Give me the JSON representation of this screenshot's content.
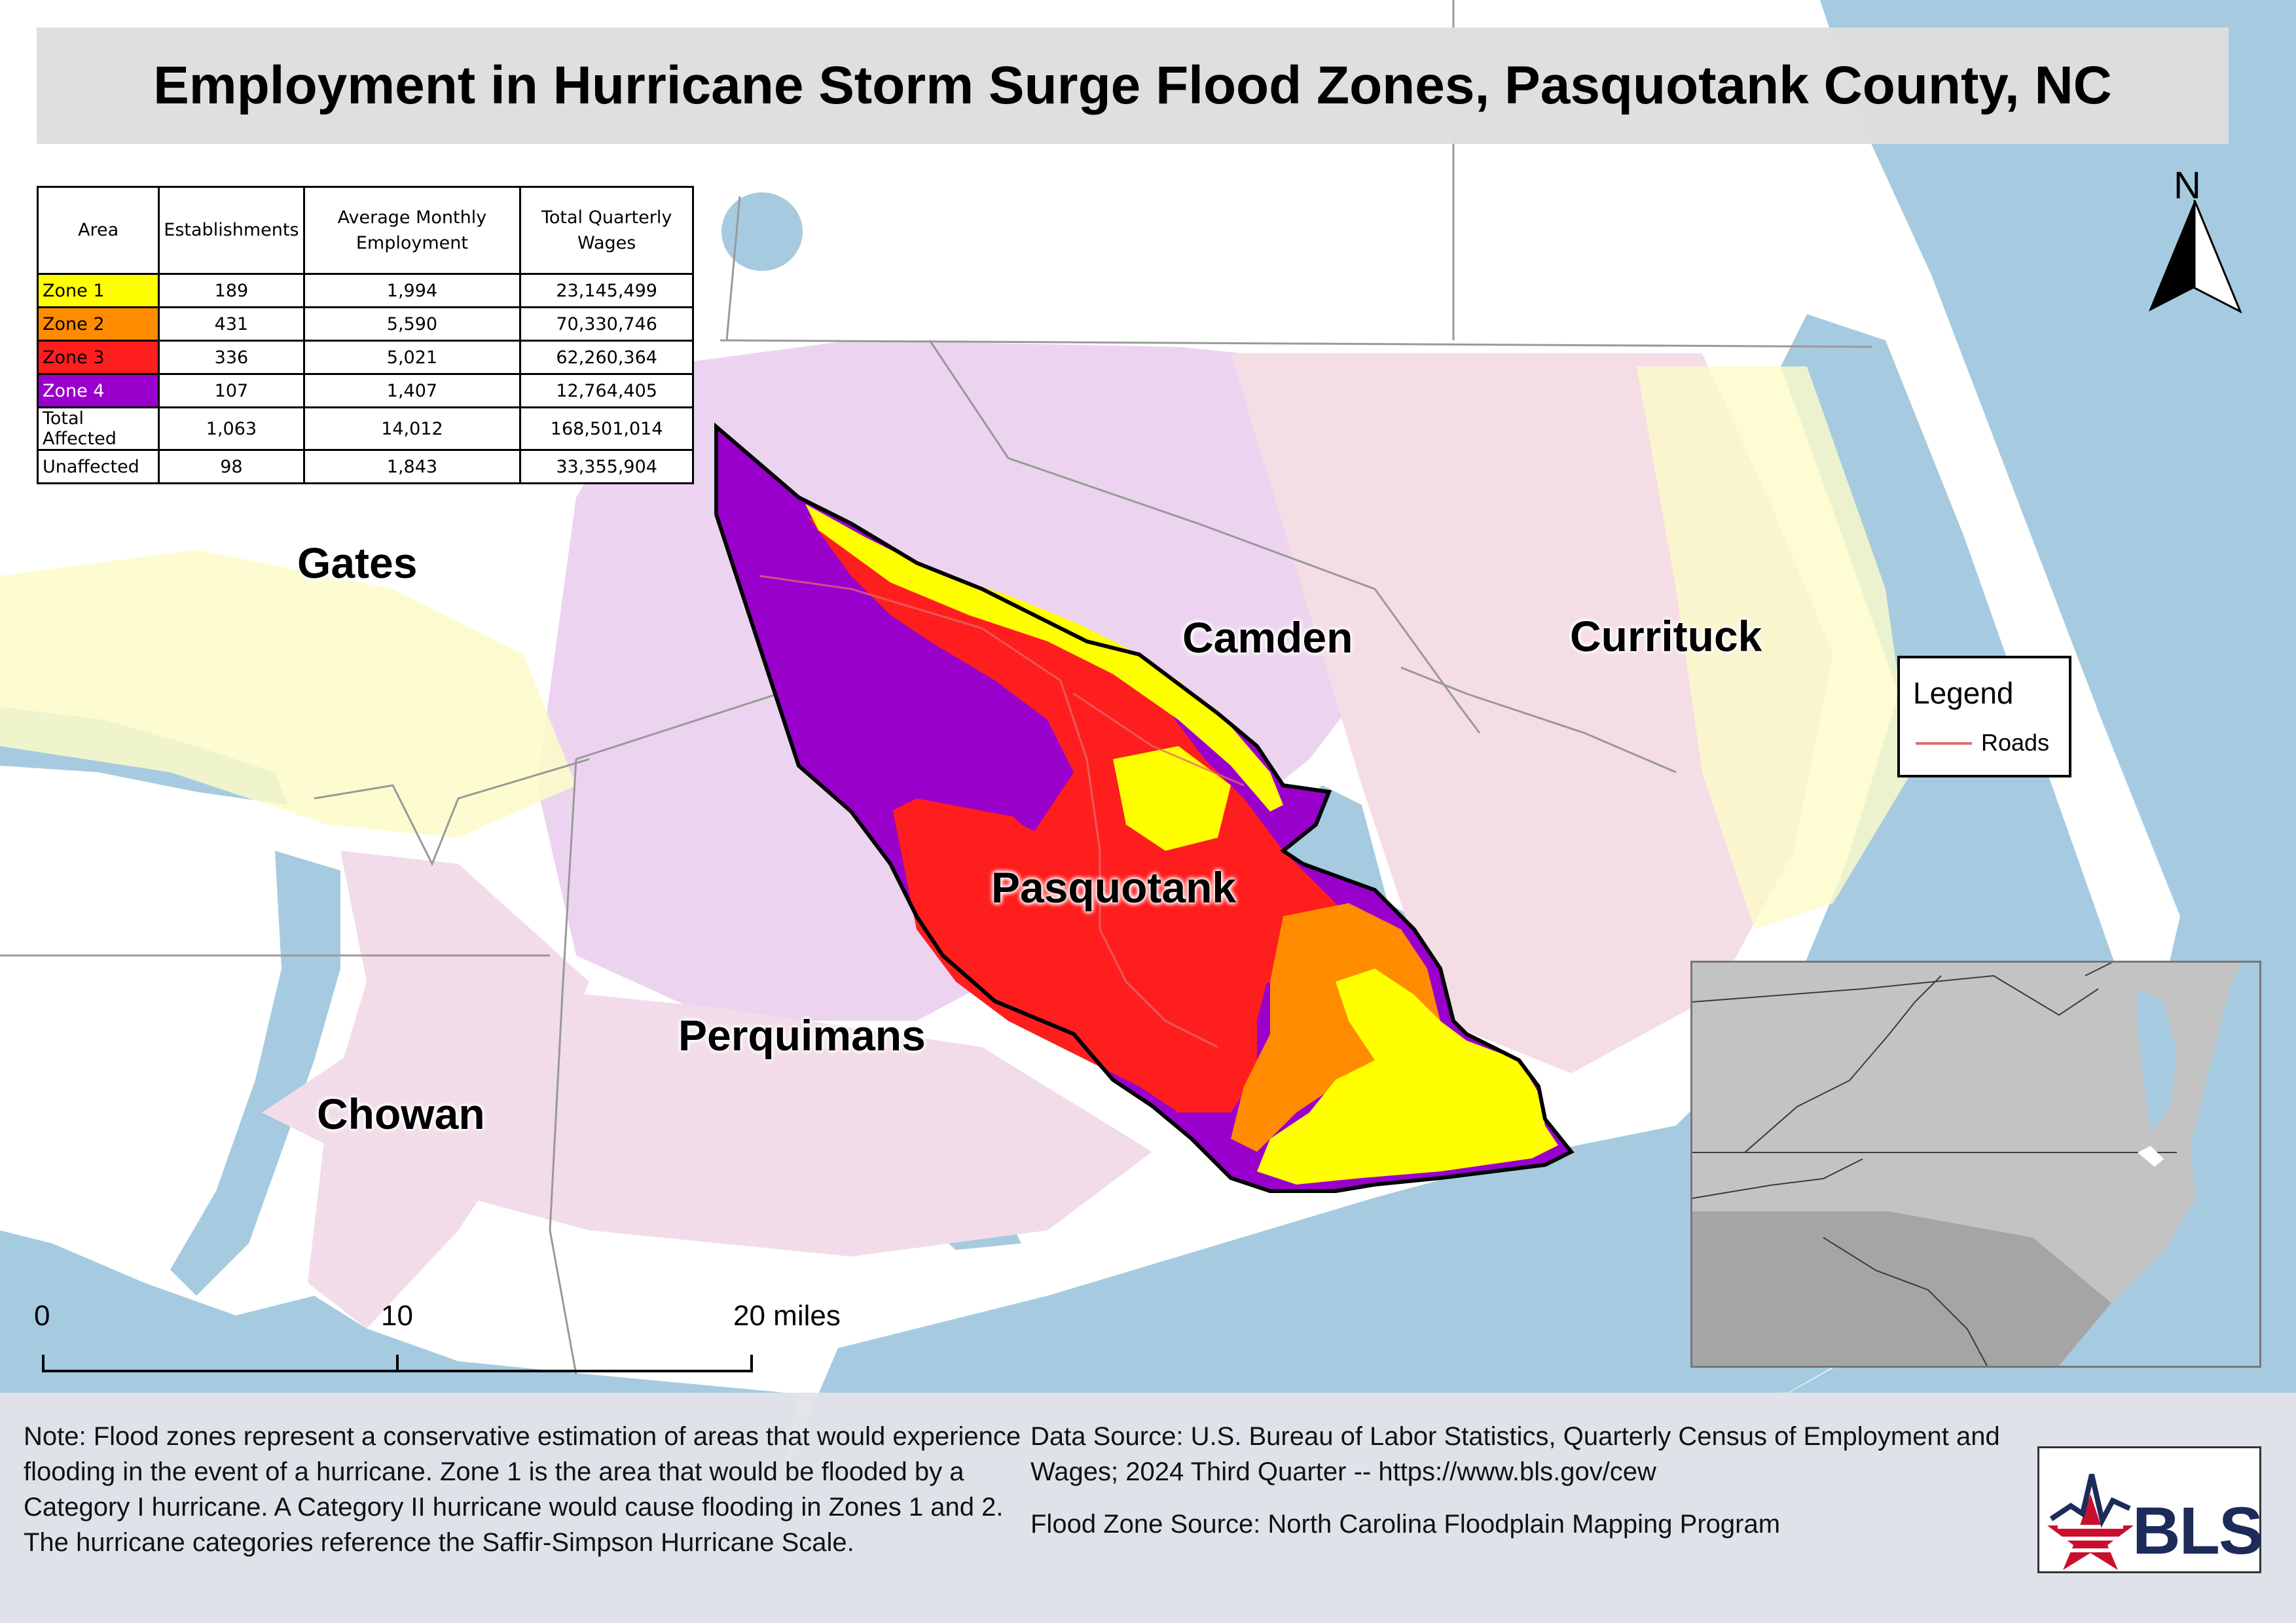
{
  "title": "Employment in Hurricane Storm Surge Flood Zones, Pasquotank County, NC",
  "table": {
    "headers": [
      "Area",
      "Establishments",
      "Average Monthly Employment",
      "Total Quarterly Wages"
    ],
    "rows": [
      {
        "area": "Zone 1",
        "establishments": "189",
        "employment": "1,994",
        "wages": "23,145,499",
        "color": "#ffff00"
      },
      {
        "area": "Zone 2",
        "establishments": "431",
        "employment": "5,590",
        "wages": "70,330,746",
        "color": "#ff8c00"
      },
      {
        "area": "Zone 3",
        "establishments": "336",
        "employment": "5,021",
        "wages": "62,260,364",
        "color": "#ff1e1e"
      },
      {
        "area": "Zone 4",
        "establishments": "107",
        "employment": "1,407",
        "wages": "12,764,405",
        "color": "#9900cc"
      },
      {
        "area": "Total Affected",
        "establishments": "1,063",
        "employment": "14,012",
        "wages": "168,501,014",
        "color": "#ffffff"
      },
      {
        "area": "Unaffected",
        "establishments": "98",
        "employment": "1,843",
        "wages": "33,355,904",
        "color": "#ffffff"
      }
    ]
  },
  "counties": {
    "gates": "Gates",
    "camden": "Camden",
    "currituck": "Currituck",
    "pasquotank": "Pasquotank",
    "perquimans": "Perquimans",
    "chowan": "Chowan"
  },
  "legend": {
    "title": "Legend",
    "roads_label": "Roads",
    "roads_color": "#e06d6d"
  },
  "north_label": "N",
  "scale": {
    "ticks": [
      "0",
      "10",
      "20 miles"
    ]
  },
  "note": "Note: Flood zones represent a conservative estimation of areas that would experience flooding in the event of a hurricane. Zone 1 is the area that would be flooded by a Category I hurricane. A Category II hurricane would cause flooding in Zones 1 and 2. The hurricane categories reference the Saffir-Simpson Hurricane Scale.",
  "data_source": "Data Source: U.S. Bureau of Labor Statistics, Quarterly Census of Employment and Wages; 2024 Third Quarter -- https://www.bls.gov/cew",
  "flood_source": "Flood Zone Source: North Carolina Floodplain Mapping Program",
  "logo_text": "BLS",
  "colors": {
    "water": "#a6cbe0",
    "land": "#ffffff",
    "tint_pink": "#f2dce9",
    "tint_lavender": "#ecd4f0",
    "tint_yellow": "#fdfbc8"
  }
}
